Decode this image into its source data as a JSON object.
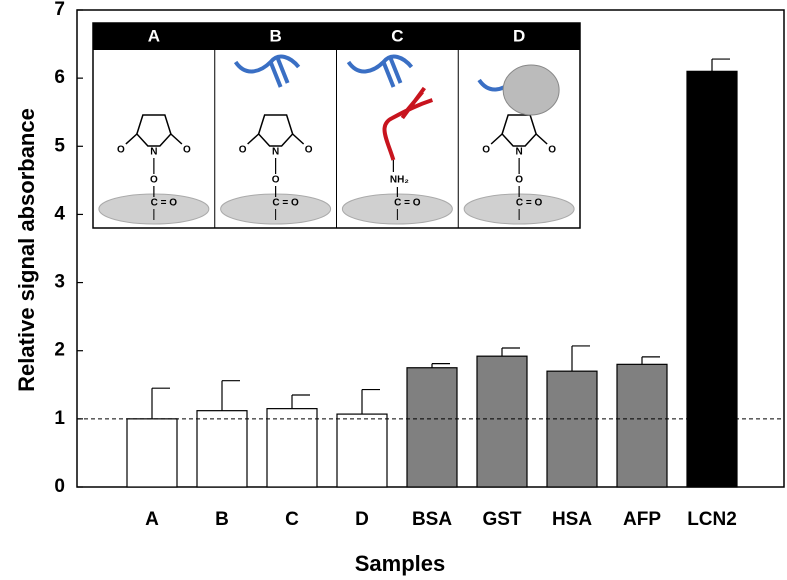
{
  "chart_data": {
    "type": "bar",
    "y_label": "Relative signal absorbance",
    "x_label": "Samples",
    "categories": [
      "A",
      "B",
      "C",
      "D",
      "BSA",
      "GST",
      "HSA",
      "AFP",
      "LCN2"
    ],
    "values": [
      1.0,
      1.12,
      1.15,
      1.07,
      1.75,
      1.92,
      1.7,
      1.8,
      6.1
    ],
    "errors": [
      0.45,
      0.44,
      0.2,
      0.36,
      0.06,
      0.12,
      0.37,
      0.11,
      0.18
    ],
    "colors": [
      "#ffffff",
      "#ffffff",
      "#ffffff",
      "#ffffff",
      "#808080",
      "#808080",
      "#808080",
      "#808080",
      "#000000"
    ],
    "ylim": [
      0,
      7
    ],
    "yticks": [
      0,
      1,
      2,
      3,
      4,
      5,
      6,
      7
    ],
    "reference_line": 1
  },
  "inset": {
    "panels": [
      {
        "label": "A",
        "atoms": [
          "O",
          "N",
          "O",
          "O",
          "C = O"
        ]
      },
      {
        "label": "B",
        "atoms": [
          "O",
          "N",
          "O",
          "O",
          "C = O"
        ]
      },
      {
        "label": "C",
        "atoms": [
          "NH₂",
          "C = O"
        ]
      },
      {
        "label": "D",
        "atoms": [
          "O",
          "N",
          "O",
          "O",
          "C = O"
        ]
      }
    ]
  }
}
